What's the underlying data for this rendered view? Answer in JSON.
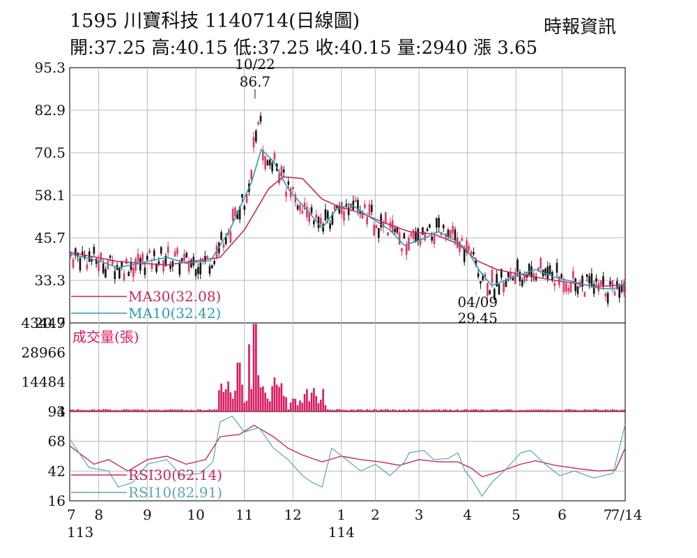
{
  "header": {
    "title": "1595  川寶科技 1140714(日線圖)",
    "source": "時報資訊",
    "ohlc": "開:37.25 高:40.15 低:37.25 收:40.15 量:2940 漲 3.65"
  },
  "colors": {
    "up": "#e8335f",
    "down": "#111111",
    "ma30": "#c8285c",
    "ma10": "#2a9cb0",
    "volume": "#d9195f",
    "rsi30": "#c8285c",
    "rsi10": "#5aa5b5",
    "grid": "#b8b8b8"
  },
  "chart_data": [
    {
      "type": "candlestick",
      "panel": "price",
      "yticks": [
        "95.3",
        "82.9",
        "70.5",
        "58.1",
        "45.7",
        "33.3",
        "20.9"
      ],
      "ylim": [
        20.9,
        95.3
      ],
      "legend": [
        {
          "key": "ma30",
          "label": "MA30(32.08)"
        },
        {
          "key": "ma10",
          "label": "MA10(32.42)"
        }
      ],
      "annotations": [
        {
          "date_label": "10/22",
          "value_label": "86.7",
          "value": 86.7,
          "month_pos": 3.82
        },
        {
          "date_label": "04/09",
          "value_label": "29.45",
          "value": 29.45,
          "month_pos": 8.38
        }
      ],
      "series": [
        {
          "name": "MA30",
          "key": "ma30",
          "points": [
            [
              0,
              41.5
            ],
            [
              1,
              38.8
            ],
            [
              2,
              37.8
            ],
            [
              2.6,
              39.0
            ],
            [
              3.1,
              40.0
            ],
            [
              3.6,
              48.0
            ],
            [
              4.1,
              60.0
            ],
            [
              4.4,
              63.5
            ],
            [
              4.8,
              63.0
            ],
            [
              5.2,
              57.0
            ],
            [
              5.6,
              54.5
            ],
            [
              6.0,
              53.0
            ],
            [
              6.5,
              50.0
            ],
            [
              7.0,
              47.5
            ],
            [
              7.5,
              46.8
            ],
            [
              8.0,
              44.0
            ],
            [
              8.4,
              39.0
            ],
            [
              8.8,
              36.5
            ],
            [
              9.3,
              35.0
            ],
            [
              10.0,
              33.3
            ],
            [
              10.9,
              31.5
            ],
            [
              11.45,
              32.08
            ]
          ]
        },
        {
          "name": "MA10",
          "key": "ma10",
          "points": [
            [
              0,
              41.0
            ],
            [
              0.6,
              39.0
            ],
            [
              1.0,
              37.0
            ],
            [
              1.5,
              38.5
            ],
            [
              2.0,
              40.0
            ],
            [
              2.4,
              38.3
            ],
            [
              2.9,
              39.0
            ],
            [
              3.3,
              48.0
            ],
            [
              3.75,
              62.0
            ],
            [
              3.95,
              71.5
            ],
            [
              4.2,
              68.0
            ],
            [
              4.5,
              60.0
            ],
            [
              5.0,
              52.0
            ],
            [
              5.2,
              48.5
            ],
            [
              5.5,
              54.0
            ],
            [
              5.8,
              55.5
            ],
            [
              6.1,
              52.5
            ],
            [
              6.6,
              48.0
            ],
            [
              6.9,
              43.5
            ],
            [
              7.3,
              45.5
            ],
            [
              7.6,
              47.5
            ],
            [
              8.0,
              44.5
            ],
            [
              8.2,
              42.0
            ],
            [
              8.45,
              36.0
            ],
            [
              8.7,
              31.8
            ],
            [
              9.1,
              34.0
            ],
            [
              9.6,
              36.5
            ],
            [
              10.0,
              34.2
            ],
            [
              10.5,
              32.5
            ],
            [
              10.9,
              31.0
            ],
            [
              11.2,
              30.8
            ],
            [
              11.45,
              32.42
            ]
          ]
        }
      ]
    },
    {
      "type": "bar",
      "panel": "volume",
      "title": "成交量(張)",
      "yticks": [
        "43447",
        "28966",
        "14484",
        "3"
      ],
      "ylim": [
        0,
        43447
      ],
      "note": "daily volume bars; large spike near 10/22 (~43447), secondary cluster early December; latest bar 2940"
    },
    {
      "type": "line",
      "panel": "rsi",
      "yticks": [
        "94",
        "68",
        "42",
        "16"
      ],
      "ylim": [
        16,
        94
      ],
      "legend": [
        {
          "key": "rsi30",
          "label": "RSI30(62.14)"
        },
        {
          "key": "rsi10",
          "label": "RSI10(82.91)"
        }
      ],
      "series": [
        {
          "name": "RSI30",
          "key": "rsi30",
          "points": [
            [
              0,
              64
            ],
            [
              0.5,
              48
            ],
            [
              0.8,
              52
            ],
            [
              1.2,
              42
            ],
            [
              1.6,
              52
            ],
            [
              2.0,
              55
            ],
            [
              2.4,
              48
            ],
            [
              2.8,
              52
            ],
            [
              3.1,
              72
            ],
            [
              3.5,
              74
            ],
            [
              3.8,
              82
            ],
            [
              4.2,
              72
            ],
            [
              4.5,
              62
            ],
            [
              4.8,
              56
            ],
            [
              5.2,
              50
            ],
            [
              5.6,
              55
            ],
            [
              6.0,
              52
            ],
            [
              6.4,
              50
            ],
            [
              6.8,
              47
            ],
            [
              7.2,
              52
            ],
            [
              7.6,
              50
            ],
            [
              8.0,
              50
            ],
            [
              8.3,
              44
            ],
            [
              8.5,
              37
            ],
            [
              8.9,
              42
            ],
            [
              9.3,
              48
            ],
            [
              9.6,
              51
            ],
            [
              10.0,
              47
            ],
            [
              10.5,
              44
            ],
            [
              10.9,
              42
            ],
            [
              11.25,
              43
            ],
            [
              11.45,
              62.14
            ]
          ]
        },
        {
          "name": "RSI10",
          "key": "rsi10",
          "points": [
            [
              0,
              70
            ],
            [
              0.4,
              45
            ],
            [
              0.8,
              42
            ],
            [
              1.0,
              28
            ],
            [
              1.3,
              32
            ],
            [
              1.6,
              48
            ],
            [
              2.0,
              52
            ],
            [
              2.3,
              38
            ],
            [
              2.7,
              40
            ],
            [
              2.95,
              50
            ],
            [
              3.1,
              85
            ],
            [
              3.35,
              90
            ],
            [
              3.6,
              76
            ],
            [
              3.9,
              80
            ],
            [
              4.2,
              62
            ],
            [
              4.5,
              52
            ],
            [
              4.8,
              38
            ],
            [
              5.0,
              32
            ],
            [
              5.2,
              28
            ],
            [
              5.4,
              62
            ],
            [
              5.7,
              52
            ],
            [
              6.0,
              42
            ],
            [
              6.3,
              48
            ],
            [
              6.6,
              38
            ],
            [
              6.9,
              50
            ],
            [
              7.0,
              58
            ],
            [
              7.3,
              60
            ],
            [
              7.5,
              52
            ],
            [
              7.8,
              53
            ],
            [
              8.0,
              58
            ],
            [
              8.15,
              42
            ],
            [
              8.3,
              34
            ],
            [
              8.5,
              20
            ],
            [
              8.7,
              32
            ],
            [
              9.0,
              44
            ],
            [
              9.3,
              58
            ],
            [
              9.5,
              60
            ],
            [
              9.8,
              48
            ],
            [
              10.1,
              38
            ],
            [
              10.4,
              42
            ],
            [
              10.8,
              36
            ],
            [
              11.2,
              40
            ],
            [
              11.45,
              82.91
            ]
          ]
        }
      ]
    }
  ],
  "xaxis": {
    "ticks": [
      {
        "pos": 0,
        "label": "7",
        "sub": "113"
      },
      {
        "pos": 0.6,
        "label": "8"
      },
      {
        "pos": 1.6,
        "label": "9"
      },
      {
        "pos": 2.6,
        "label": "10"
      },
      {
        "pos": 3.6,
        "label": "11"
      },
      {
        "pos": 4.6,
        "label": "12"
      },
      {
        "pos": 5.6,
        "label": "1",
        "sub": "114"
      },
      {
        "pos": 6.3,
        "label": "2"
      },
      {
        "pos": 7.2,
        "label": "3"
      },
      {
        "pos": 8.2,
        "label": "4"
      },
      {
        "pos": 9.2,
        "label": "5"
      },
      {
        "pos": 10.15,
        "label": "6"
      },
      {
        "pos": 11.15,
        "label": "7"
      },
      {
        "pos": 11.45,
        "label": "7/14"
      }
    ],
    "range": [
      0,
      11.45
    ]
  }
}
